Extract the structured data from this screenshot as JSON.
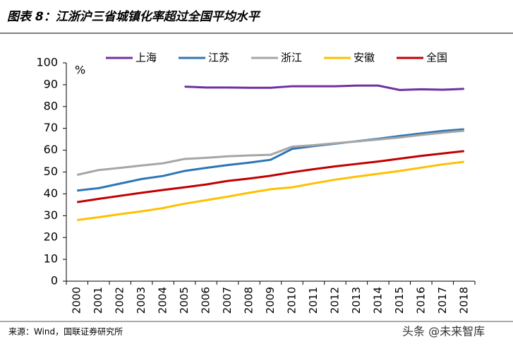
{
  "chart_data": {
    "type": "line",
    "title": "图表 8：江浙沪三省城镇化率超过全国平均水平",
    "y_label": "%",
    "categories": [
      "2000",
      "2001",
      "2002",
      "2003",
      "2004",
      "2005",
      "2006",
      "2007",
      "2008",
      "2009",
      "2010",
      "2011",
      "2012",
      "2013",
      "2014",
      "2015",
      "2016",
      "2017",
      "2018"
    ],
    "series": [
      {
        "name": "上海",
        "color": "#7030a0",
        "values": [
          null,
          null,
          null,
          null,
          null,
          89.1,
          88.7,
          88.7,
          88.6,
          88.6,
          89.3,
          89.3,
          89.3,
          89.6,
          89.6,
          87.6,
          87.9,
          87.7,
          88.1
        ]
      },
      {
        "name": "江苏",
        "color": "#2e75b6",
        "values": [
          41.5,
          42.6,
          44.7,
          46.8,
          48.2,
          50.5,
          51.9,
          53.2,
          54.3,
          55.6,
          60.6,
          61.9,
          63.0,
          64.1,
          65.2,
          66.5,
          67.7,
          68.8,
          69.6
        ]
      },
      {
        "name": "浙江",
        "color": "#a6a6a6",
        "values": [
          48.7,
          50.9,
          51.9,
          53.0,
          54.0,
          56.0,
          56.5,
          57.2,
          57.6,
          57.9,
          61.6,
          62.3,
          63.2,
          64.0,
          64.9,
          65.8,
          67.0,
          68.0,
          68.9
        ]
      },
      {
        "name": "安徽",
        "color": "#ffc000",
        "values": [
          28.0,
          29.3,
          30.7,
          32.0,
          33.5,
          35.5,
          37.1,
          38.7,
          40.5,
          42.1,
          43.0,
          44.8,
          46.5,
          47.9,
          49.2,
          50.5,
          52.0,
          53.5,
          54.7
        ]
      },
      {
        "name": "全国",
        "color": "#c00000",
        "values": [
          36.2,
          37.7,
          39.1,
          40.5,
          41.8,
          43.0,
          44.3,
          45.9,
          47.0,
          48.3,
          49.9,
          51.3,
          52.6,
          53.7,
          54.8,
          56.1,
          57.4,
          58.5,
          59.6
        ]
      }
    ],
    "ylim": [
      0,
      100
    ],
    "yticks": [
      0,
      10,
      20,
      30,
      40,
      50,
      60,
      70,
      80,
      90,
      100
    ]
  },
  "source": "来源：Wind，国联证券研究所",
  "watermark": "头条 @未来智库"
}
